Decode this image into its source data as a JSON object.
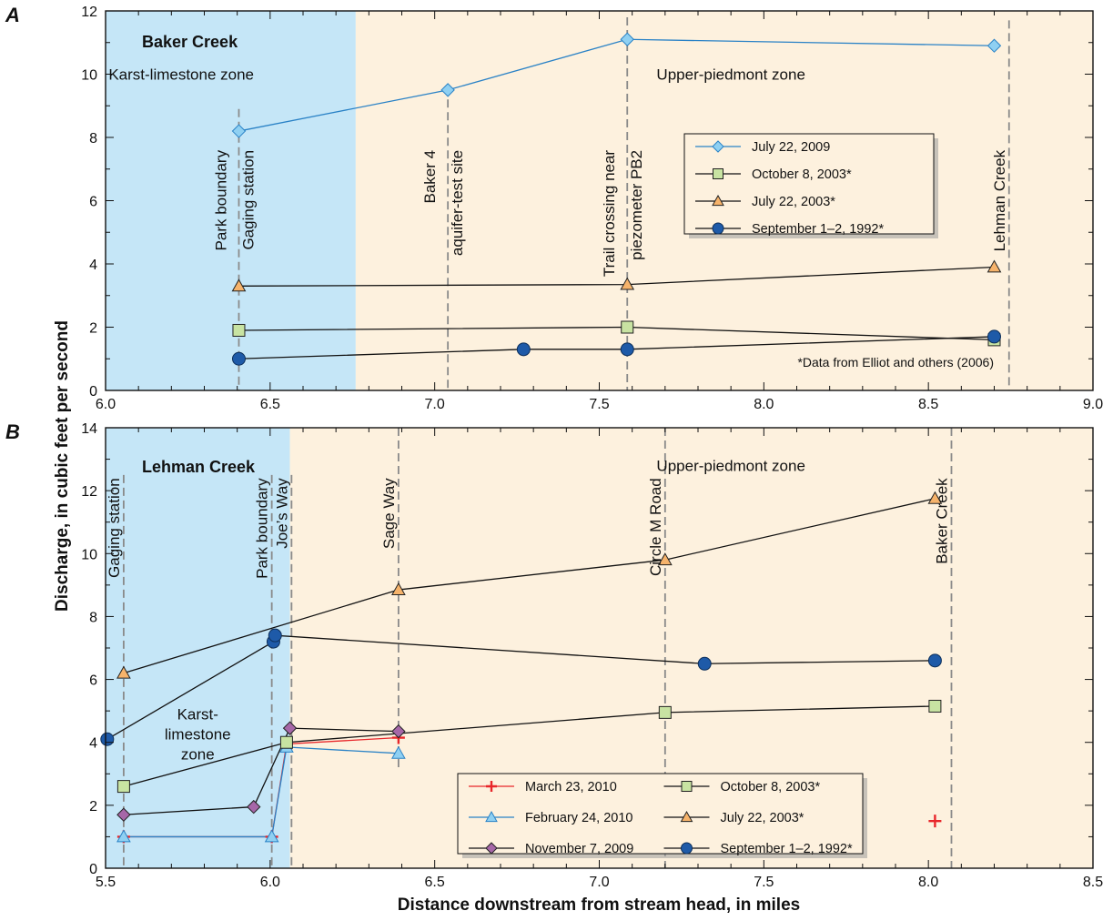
{
  "figure": {
    "ylabel": "Discharge, in cubic feet per second",
    "xlabel": "Distance downstream from stream head, in miles",
    "footnote": "*Data from Elliot and others (2006)"
  },
  "chart_data": [
    {
      "type": "line",
      "panel_letter": "A",
      "title": "Baker Creek",
      "xlim": [
        6.0,
        9.0
      ],
      "ylim": [
        0,
        12
      ],
      "x_ticks": [
        6.0,
        6.5,
        7.0,
        7.5,
        8.0,
        8.5,
        9.0
      ],
      "x_tick_labels": [
        "6.0",
        "6.5",
        "7.0",
        "7.5",
        "8.0",
        "8.5",
        "9.0"
      ],
      "y_ticks": [
        0,
        2,
        4,
        6,
        8,
        10,
        12
      ],
      "y_tick_labels": [
        "0",
        "2",
        "4",
        "6",
        "8",
        "10",
        "12"
      ],
      "grid": false,
      "zones": [
        {
          "label_lines": [
            "Karst-limestone zone"
          ],
          "x_from": 6.0,
          "x_to": 6.76,
          "color": "#c5e6f7",
          "label_x": 6.23,
          "label_y": 10.0
        },
        {
          "label_lines": [
            "Upper-piedmont zone"
          ],
          "x_from": 6.76,
          "x_to": 9.0,
          "color": "#fdf1de",
          "label_x": 7.9,
          "label_y": 10.0
        }
      ],
      "site_markers": [
        {
          "x": 6.405,
          "y_from": 0,
          "y_to": 8.9,
          "label_lines": [
            "Park boundary",
            "Gaging station"
          ],
          "label_top_y": 7.6
        },
        {
          "x": 7.04,
          "y_from": 0,
          "y_to": 9.2,
          "label_lines": [
            "Baker 4",
            "aquifer-test site"
          ],
          "label_top_y": 7.6
        },
        {
          "x": 7.585,
          "y_from": 0,
          "y_to": 11.8,
          "label_lines": [
            "Trail crossing  near",
            "piezometer PB2"
          ],
          "label_top_y": 7.6
        },
        {
          "x": 8.745,
          "y_from": 0,
          "y_to": 11.7,
          "label_lines": [
            "Lehman Creek"
          ],
          "label_top_y": 7.6
        }
      ],
      "series": [
        {
          "name": "July 22, 2009",
          "marker": "diamond",
          "line_color": "#2a82c6",
          "fill": "#8fd0f2",
          "x": [
            6.405,
            7.04,
            7.585,
            8.7
          ],
          "y": [
            8.2,
            9.5,
            11.1,
            10.9
          ]
        },
        {
          "name": "October 8, 2003*",
          "marker": "square",
          "line_color": "#111111",
          "fill": "#c8e3a2",
          "x": [
            6.405,
            7.585,
            8.7
          ],
          "y": [
            1.9,
            2.0,
            1.6
          ]
        },
        {
          "name": "July 22, 2003*",
          "marker": "triangle",
          "line_color": "#111111",
          "fill": "#f6b36b",
          "x": [
            6.405,
            7.585,
            8.7
          ],
          "y": [
            3.3,
            3.35,
            3.9
          ]
        },
        {
          "name": "September 1–2, 1992*",
          "marker": "circle",
          "line_color": "#111111",
          "fill": "#1e5aa8",
          "x": [
            6.405,
            7.27,
            7.585,
            8.7
          ],
          "y": [
            1.0,
            1.3,
            1.3,
            1.7
          ]
        }
      ],
      "legend": {
        "position": "center-right",
        "columns": 1
      }
    },
    {
      "type": "line",
      "panel_letter": "B",
      "title": "Lehman Creek",
      "xlim": [
        5.5,
        8.5
      ],
      "ylim": [
        0,
        14
      ],
      "x_ticks": [
        5.5,
        6.0,
        6.5,
        7.0,
        7.5,
        8.0,
        8.5
      ],
      "x_tick_labels": [
        "5.5",
        "6.0",
        "6.5",
        "7.0",
        "7.5",
        "8.0",
        "8.5"
      ],
      "y_ticks": [
        0,
        2,
        4,
        6,
        8,
        10,
        12,
        14
      ],
      "y_tick_labels": [
        "0",
        "2",
        "4",
        "6",
        "8",
        "10",
        "12",
        "14"
      ],
      "grid": false,
      "zones": [
        {
          "label_lines": [
            "Karst-",
            "limestone",
            "zone"
          ],
          "x_from": 5.5,
          "x_to": 6.06,
          "color": "#c5e6f7",
          "label_x": 5.78,
          "label_y": 4.9
        },
        {
          "label_lines": [
            "Upper-piedmont zone"
          ],
          "x_from": 6.06,
          "x_to": 8.5,
          "color": "#fdf1de",
          "label_x": 7.4,
          "label_y": 12.8
        }
      ],
      "site_markers": [
        {
          "x": 5.555,
          "y_from": 0,
          "y_to": 12.5,
          "label_lines": [
            "Gaging station"
          ],
          "label_top_y": 12.4
        },
        {
          "x": 6.005,
          "y_from": 0,
          "y_to": 12.5,
          "label_lines": [
            "Park boundary"
          ],
          "label_top_y": 12.4
        },
        {
          "x": 6.065,
          "y_from": 0,
          "y_to": 12.5,
          "label_lines": [
            "Joe’s Way"
          ],
          "label_top_y": 12.4
        },
        {
          "x": 6.39,
          "y_from": 3.1,
          "y_to": 14.0,
          "label_lines": [
            "Sage Way"
          ],
          "label_top_y": 12.4
        },
        {
          "x": 7.2,
          "y_from": 0,
          "y_to": 14.0,
          "label_lines": [
            "Circle M Road"
          ],
          "label_top_y": 12.4
        },
        {
          "x": 8.07,
          "y_from": 0,
          "y_to": 14.0,
          "label_lines": [
            "Baker Creek"
          ],
          "label_top_y": 12.4
        }
      ],
      "series": [
        {
          "name": "March 23, 2010",
          "marker": "plus",
          "line_color": "#e8262a",
          "fill": "#e8262a",
          "x": [
            5.555,
            6.005,
            6.05,
            6.39
          ],
          "y": [
            1.0,
            1.0,
            3.95,
            4.15
          ],
          "extra_points": [
            {
              "x": 8.02,
              "y": 1.5
            }
          ]
        },
        {
          "name": "February 24, 2010",
          "marker": "triangle",
          "line_color": "#2a82c6",
          "fill": "#8fd0f2",
          "x": [
            5.555,
            6.005,
            6.05,
            6.39
          ],
          "y": [
            1.0,
            1.0,
            3.85,
            3.65
          ]
        },
        {
          "name": "November 7, 2009",
          "marker": "diamond",
          "line_color": "#111111",
          "fill": "#a667a8",
          "x": [
            5.555,
            5.95,
            6.06,
            6.39
          ],
          "y": [
            1.7,
            1.95,
            4.45,
            4.35
          ]
        },
        {
          "name": "October 8, 2003*",
          "marker": "square",
          "line_color": "#111111",
          "fill": "#c8e3a2",
          "x": [
            5.555,
            6.05,
            7.2,
            8.02
          ],
          "y": [
            2.6,
            4.0,
            4.95,
            5.15
          ]
        },
        {
          "name": "July 22, 2003*",
          "marker": "triangle",
          "line_color": "#111111",
          "fill": "#f6b36b",
          "x": [
            5.555,
            6.39,
            7.2,
            8.02
          ],
          "y": [
            6.2,
            8.85,
            9.8,
            11.75
          ]
        },
        {
          "name": "September 1–2, 1992*",
          "marker": "circle",
          "line_color": "#111111",
          "fill": "#1e5aa8",
          "x": [
            5.505,
            6.01,
            6.015,
            7.32,
            8.02
          ],
          "y": [
            4.1,
            7.2,
            7.4,
            6.5,
            6.6
          ]
        }
      ],
      "legend": {
        "position": "bottom-center",
        "columns": 2
      }
    }
  ]
}
